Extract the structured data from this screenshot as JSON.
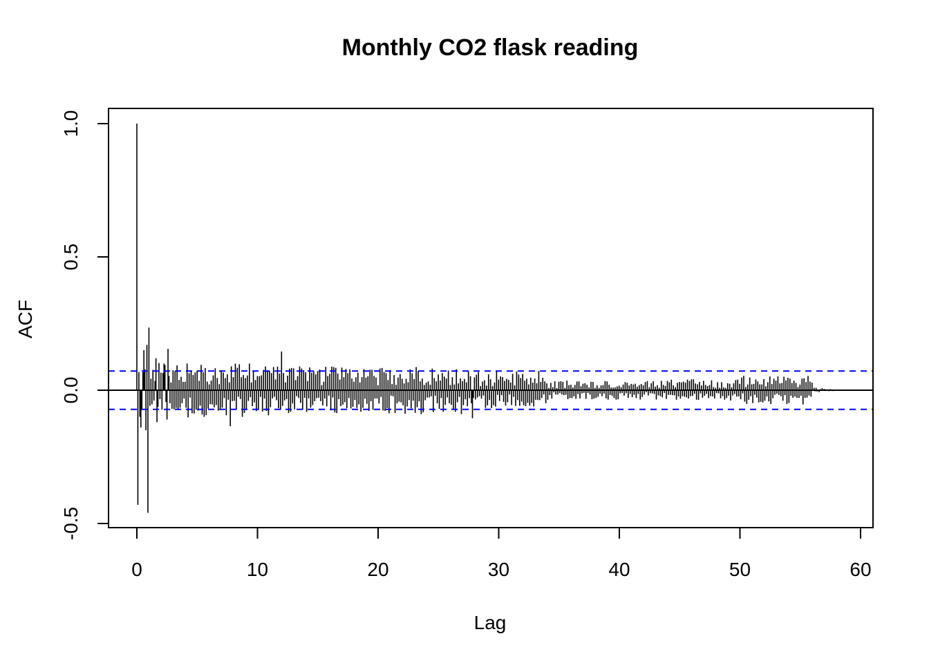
{
  "chart_data": {
    "type": "bar",
    "subtype": "acf-stem",
    "title": "Monthly CO2 flask reading",
    "xlabel": "Lag",
    "ylabel": "ACF",
    "xlim": [
      0,
      60
    ],
    "ylim": [
      -0.5,
      1.0
    ],
    "xticks": [
      0,
      10,
      20,
      30,
      40,
      50,
      60
    ],
    "yticks": [
      -0.5,
      0.0,
      0.5,
      1.0
    ],
    "xtick_labels": [
      "0",
      "10",
      "20",
      "30",
      "40",
      "50",
      "60"
    ],
    "ytick_labels": [
      "-0.5",
      "0.0",
      "0.5",
      "1.0"
    ],
    "confidence_bound": 0.072,
    "colors": {
      "stems": "#000000",
      "confidence": "#0000ff",
      "zero_line": "#000000"
    },
    "lag_step": 0.0833,
    "max_lag": 58.33,
    "highlighted_acf": [
      {
        "lag": 0.0,
        "acf": 1.0
      },
      {
        "lag": 0.0833,
        "acf": -0.43
      },
      {
        "lag": 0.333,
        "acf": -0.14
      },
      {
        "lag": 0.583,
        "acf": 0.15
      },
      {
        "lag": 0.75,
        "acf": -0.15
      },
      {
        "lag": 0.833,
        "acf": 0.17
      },
      {
        "lag": 0.917,
        "acf": -0.46
      },
      {
        "lag": 1.0,
        "acf": 0.235
      },
      {
        "lag": 1.583,
        "acf": 0.12
      },
      {
        "lag": 1.667,
        "acf": -0.12
      },
      {
        "lag": 2.25,
        "acf": 0.1
      },
      {
        "lag": 2.5,
        "acf": -0.11
      },
      {
        "lag": 2.583,
        "acf": 0.155
      },
      {
        "lag": 7.75,
        "acf": -0.135
      },
      {
        "lag": 12.0,
        "acf": 0.145
      },
      {
        "lag": 27.83,
        "acf": -0.105
      }
    ]
  }
}
